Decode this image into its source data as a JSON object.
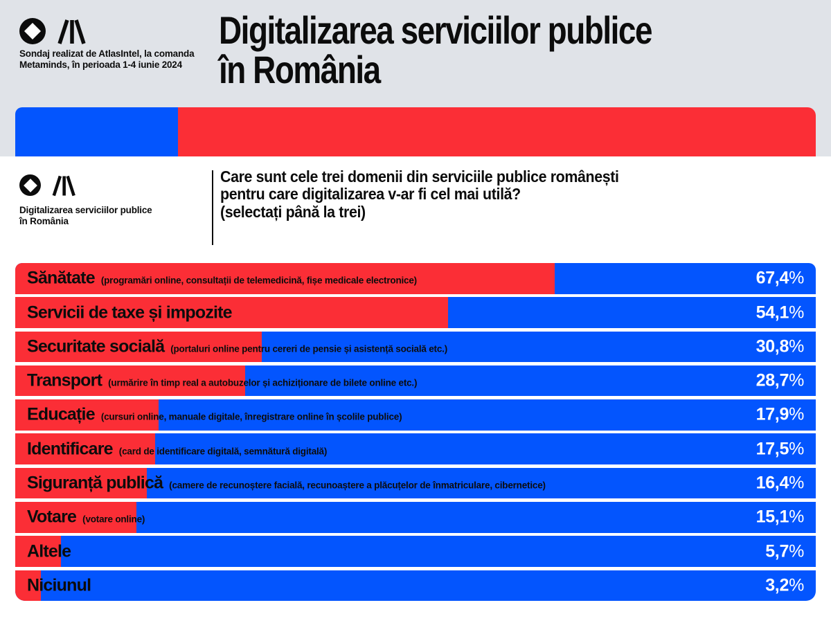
{
  "colors": {
    "blue": "#0355fe",
    "red": "#fb2e36",
    "header_bg": "#e0e3e8",
    "text": "#0c0c0c",
    "value_text": "#ffffff"
  },
  "header": {
    "credit_line1": "Sondaj realizat de AtlasIntel, la comanda",
    "credit_line2": "Metaminds, în perioada 1-4 iunie 2024",
    "title_line1": "Digitalizarea serviciilor publice",
    "title_line2": "în România"
  },
  "subheader": {
    "brand_line1": "Digitalizarea serviciilor publice",
    "brand_line2": "în România",
    "question_line1": "Care sunt cele trei domenii din serviciile publice românești",
    "question_line2": "pentru care digitalizarea v-ar fi cel mai utilă?",
    "question_line3": "(selectați până la trei)"
  },
  "chart_data": {
    "type": "bar",
    "orientation": "horizontal",
    "title": "Care sunt cele trei domenii din serviciile publice românești pentru care digitalizarea v-ar fi cel mai utilă? (selectați până la trei)",
    "unit": "%",
    "xlim": [
      0,
      100
    ],
    "grid": false,
    "legend": false,
    "bar_color": "#fb2e36",
    "track_color": "#0355fe",
    "categories": [
      "Sănătate",
      "Servicii de taxe și impozite",
      "Securitate socială",
      "Transport",
      "Educație",
      "Identificare",
      "Siguranță publică",
      "Votare",
      "Altele",
      "Niciunul"
    ],
    "descriptions": [
      "(programări online, consultații de telemedicină, fișe medicale electronice)",
      "",
      "(portaluri online pentru cereri de pensie și asistență socială etc.)",
      "(urmărire în timp real a autobuzelor și achiziționare de bilete online etc.)",
      "(cursuri online, manuale digitale, înregistrare online în școlile publice)",
      "(card de identificare digitală, semnătură digitală)",
      "(camere de recunoștere facială, recunoaștere a plăcuțelor de înmatriculare, cibernetice)",
      "(votare online)",
      "",
      ""
    ],
    "values": [
      67.4,
      54.1,
      30.8,
      28.7,
      17.9,
      17.5,
      16.4,
      15.1,
      5.7,
      3.2
    ],
    "value_labels": [
      "67,4",
      "54,1",
      "30,8",
      "28,7",
      "17,9",
      "17,5",
      "16,4",
      "15,1",
      "5,7",
      "3,2"
    ],
    "percent_sign": "%"
  }
}
